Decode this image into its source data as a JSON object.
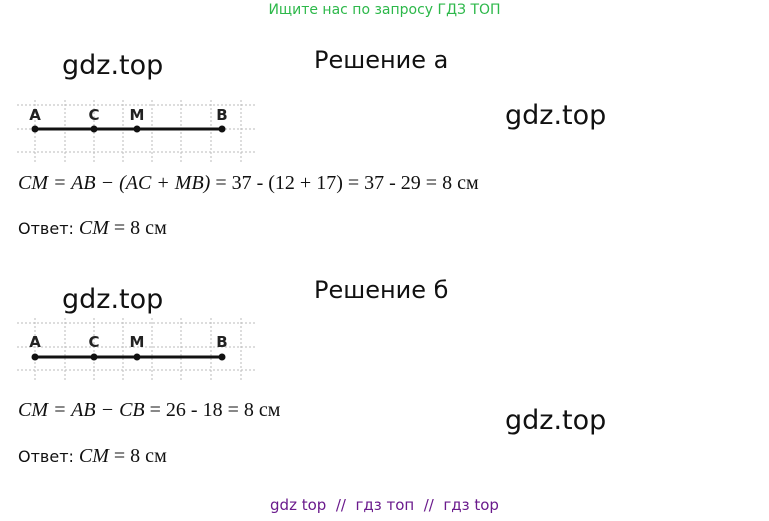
{
  "header": {
    "text": "Ищите нас по запросу ГДЗ ТОП"
  },
  "watermarks": [
    "gdz.top",
    "gdz.top",
    "gdz.top",
    "gdz.top"
  ],
  "sections": [
    {
      "title": "Решение а",
      "points": [
        "A",
        "C",
        "M",
        "B"
      ],
      "formula": {
        "math": "CM = AB − (AC + MB)",
        "rest": "= 37 - (12 + 17) = 37 - 29 = 8 см"
      },
      "answer": {
        "label": "Ответ:",
        "math": "CM",
        "rest": "= 8 см"
      }
    },
    {
      "title": "Решение б",
      "points": [
        "A",
        "C",
        "M",
        "B"
      ],
      "formula": {
        "math": "CM = AB − CB",
        "rest": "= 26 - 18 = 8 см"
      },
      "answer": {
        "label": "Ответ:",
        "math": "CM",
        "rest": "= 8 см"
      }
    }
  ],
  "footer": {
    "text": "gdz top  //  гдз топ  //  гдз top"
  }
}
